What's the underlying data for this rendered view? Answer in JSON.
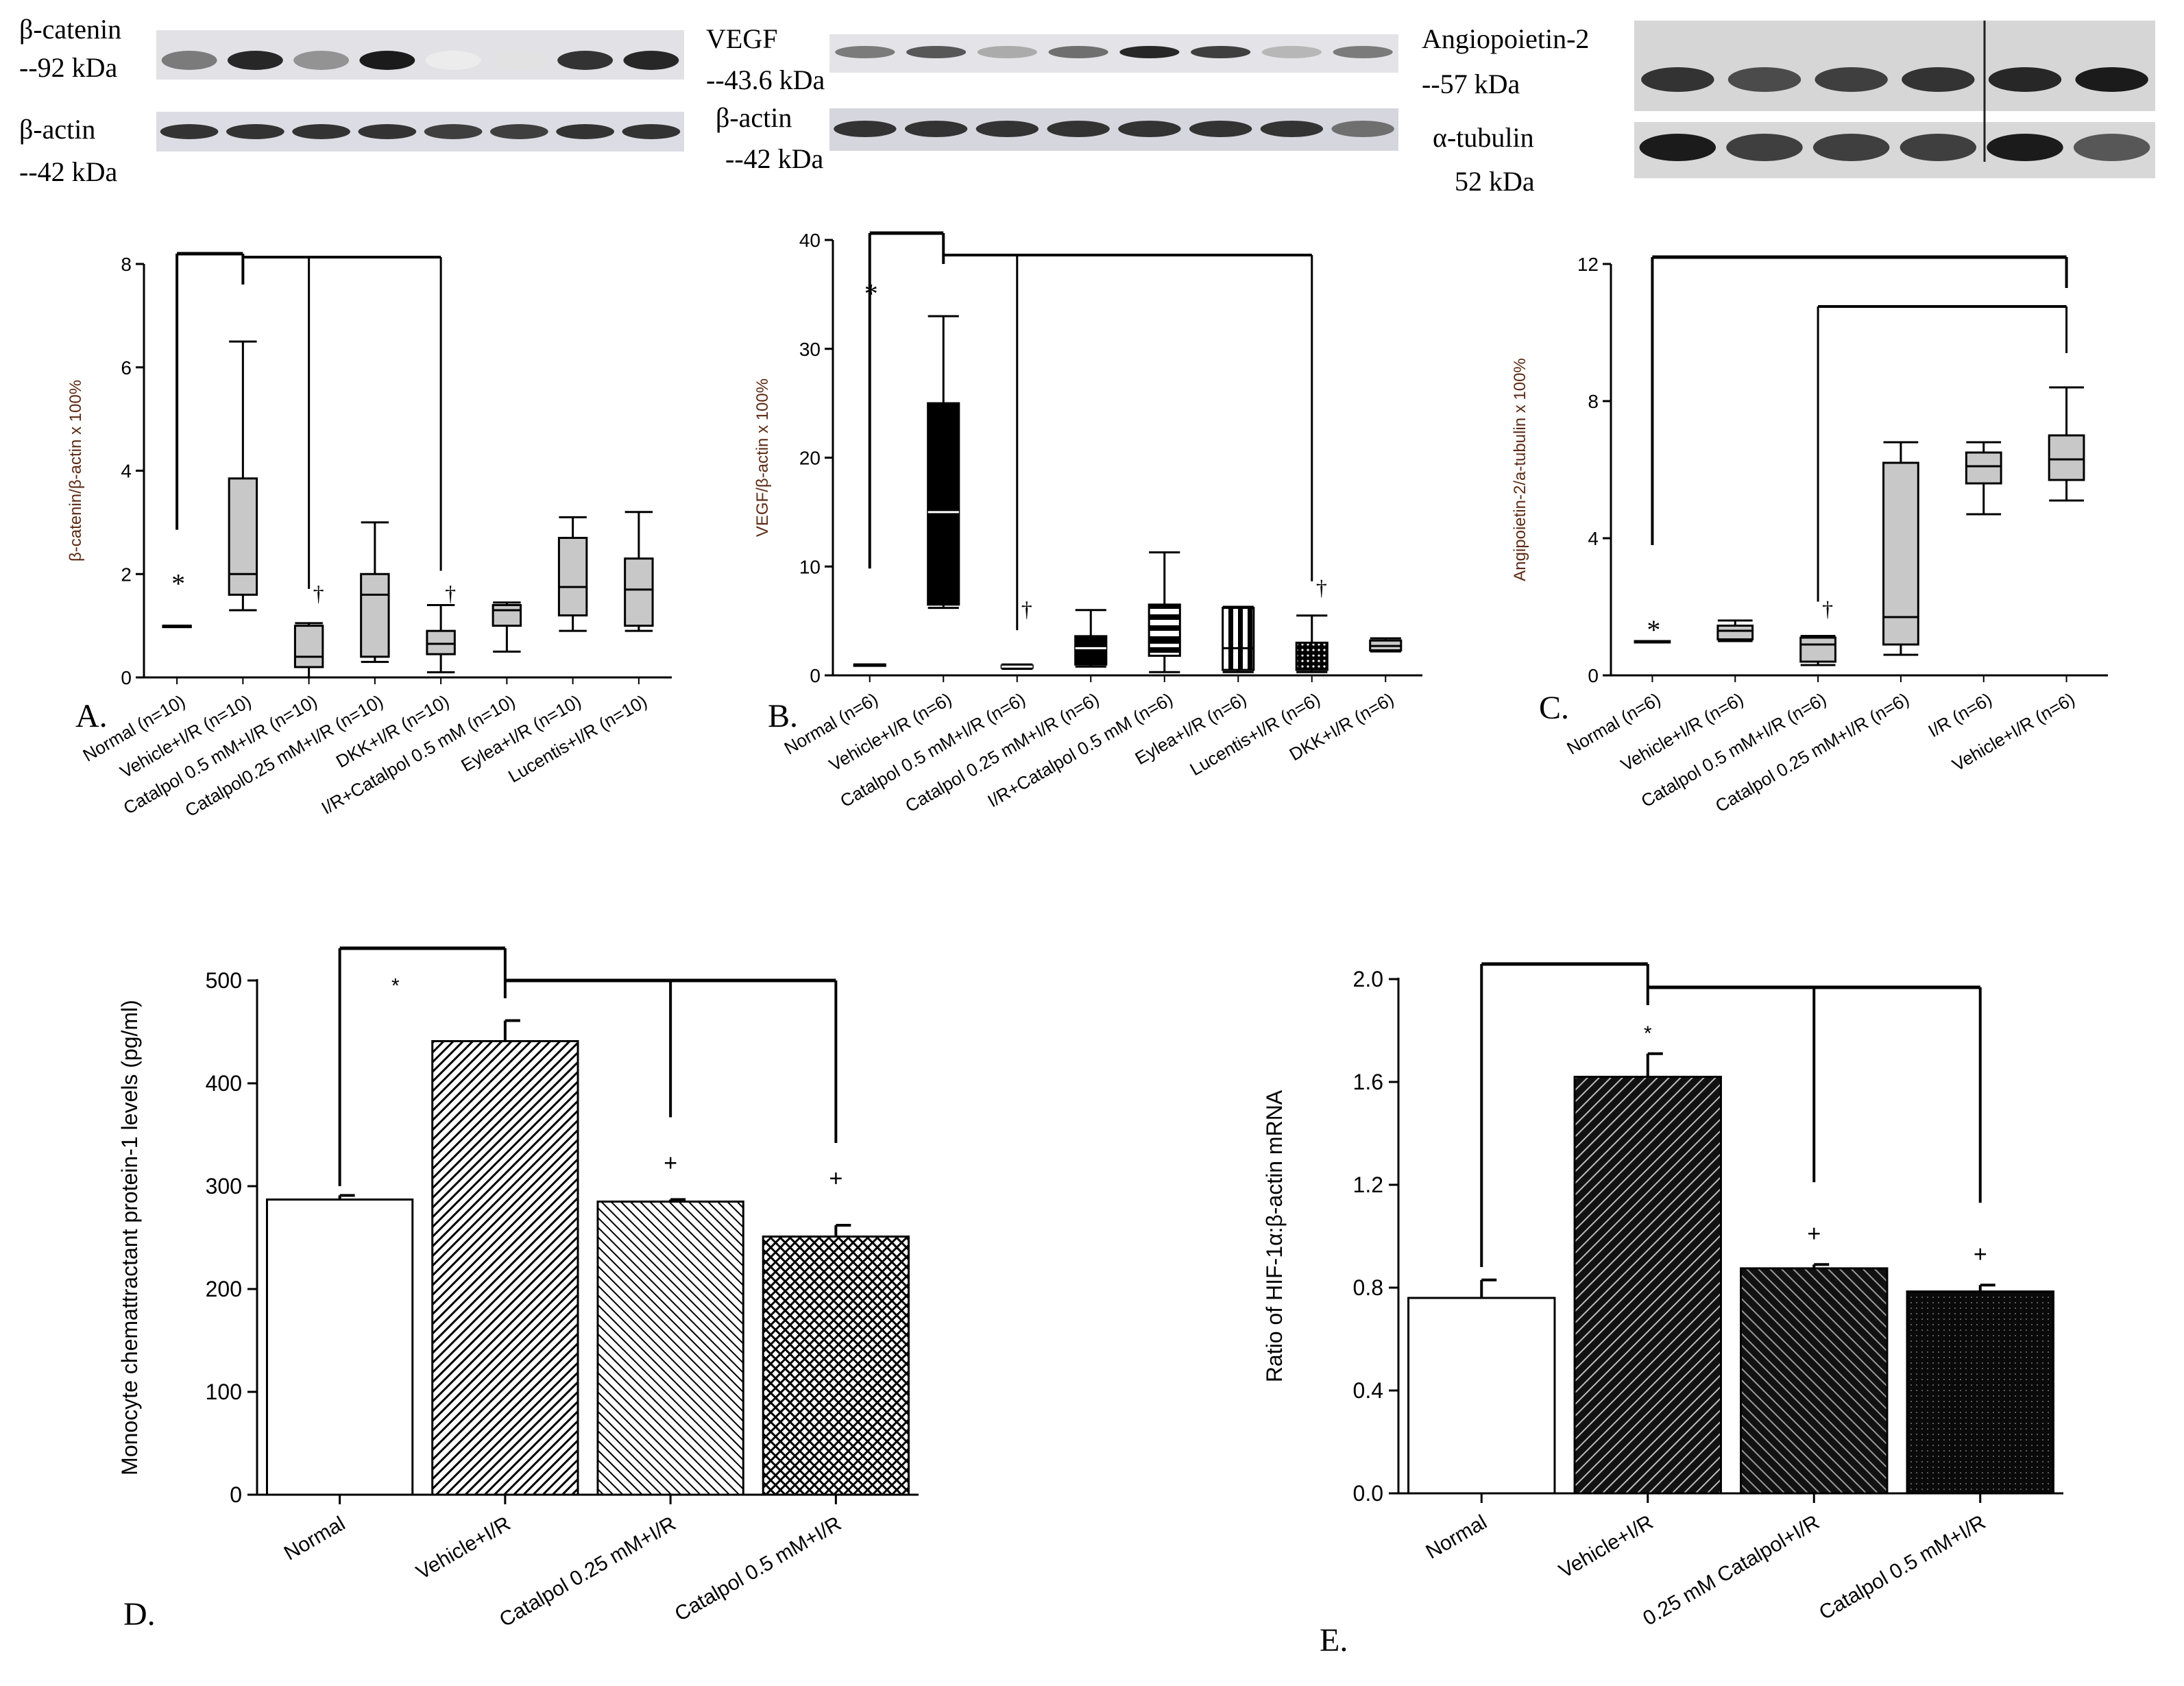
{
  "blots": {
    "A": {
      "target_label": "β-catenin",
      "target_size": "--92 kDa",
      "control_label": "β-actin",
      "control_size": "--42 kDa",
      "target_intensity": [
        0.55,
        0.9,
        0.45,
        0.95,
        0.08,
        0.12,
        0.85,
        0.9
      ],
      "control_intensity": [
        0.85,
        0.85,
        0.85,
        0.85,
        0.8,
        0.8,
        0.85,
        0.85
      ]
    },
    "B": {
      "target_label": "VEGF",
      "target_size": "--43.6 kDa",
      "control_label": "β-actin",
      "control_size": "--42 kDa",
      "target_intensity": [
        0.55,
        0.7,
        0.35,
        0.6,
        0.9,
        0.8,
        0.3,
        0.55
      ],
      "control_intensity": [
        0.85,
        0.85,
        0.85,
        0.85,
        0.85,
        0.85,
        0.85,
        0.6
      ]
    },
    "C": {
      "target_label": "Angiopoietin-2",
      "target_size": "--57 kDa",
      "control_label": "α-tubulin",
      "control_size": "52 kDa",
      "target_intensity": [
        0.85,
        0.75,
        0.8,
        0.85,
        0.9,
        0.95
      ],
      "control_intensity": [
        0.95,
        0.8,
        0.8,
        0.8,
        0.95,
        0.7
      ]
    }
  },
  "chart_data": [
    {
      "panel": "A.",
      "type": "box",
      "ylabel": "β-catenin/β-actin x 100%",
      "ylim": [
        0,
        8
      ],
      "yticks": [
        "0",
        "2",
        "4",
        "6",
        "8"
      ],
      "categories": [
        "Normal (n=10)",
        "Vehicle+I/R (n=10)",
        "Catalpol 0.5 mM+I/R  (n=10)",
        "Catalpol0.25 mM+I/R  (n=10)",
        "DKK+I/R  (n=10)",
        "I/R+Catalpol 0.5 mM (n=10)",
        "Eylea+I/R  (n=10)",
        "Lucentis+I/R  (n=10)"
      ],
      "boxes": [
        {
          "min": 1.0,
          "q1": 1.0,
          "median": 1.0,
          "q3": 1.0,
          "max": 1.0,
          "fill": "#ffffff"
        },
        {
          "min": 1.3,
          "q1": 1.6,
          "median": 2.0,
          "q3": 3.85,
          "max": 6.5,
          "fill": "#c8c8c8"
        },
        {
          "min": 0.0,
          "q1": 0.2,
          "median": 0.4,
          "q3": 1.0,
          "max": 1.05,
          "fill": "#c8c8c8"
        },
        {
          "min": 0.3,
          "q1": 0.4,
          "median": 1.6,
          "q3": 2.0,
          "max": 3.0,
          "fill": "#c8c8c8"
        },
        {
          "min": 0.1,
          "q1": 0.45,
          "median": 0.65,
          "q3": 0.9,
          "max": 1.4,
          "fill": "#c8c8c8"
        },
        {
          "min": 0.5,
          "q1": 1.0,
          "median": 1.3,
          "q3": 1.4,
          "max": 1.45,
          "fill": "#c8c8c8"
        },
        {
          "min": 0.9,
          "q1": 1.2,
          "median": 1.75,
          "q3": 2.7,
          "max": 3.1,
          "fill": "#c8c8c8"
        },
        {
          "min": 0.9,
          "q1": 1.0,
          "median": 1.7,
          "q3": 2.3,
          "max": 3.2,
          "fill": "#c8c8c8"
        }
      ],
      "annotations": {
        "star": "*",
        "dagger": "†"
      }
    },
    {
      "panel": "B.",
      "type": "box",
      "ylabel": "VEGF/β-actin x 100%",
      "ylim": [
        0,
        40
      ],
      "yticks": [
        "0",
        "10",
        "20",
        "30",
        "40"
      ],
      "categories": [
        "Normal (n=6)",
        "Vehicle+I/R (n=6)",
        "Catalpol 0.5 mM+I/R (n=6)",
        "Catalpol 0.25 mM+I/R (n=6)",
        "I/R+Catalpol 0.5 mM (n=6)",
        "Eylea+I/R (n=6)",
        "Lucentis+I/R (n=6)",
        "DKK+I/R (n=6)"
      ],
      "boxes": [
        {
          "min": 1.0,
          "q1": 1.0,
          "median": 1.0,
          "q3": 1.0,
          "max": 1.0,
          "fill": "#ffffff"
        },
        {
          "min": 6.2,
          "q1": 6.5,
          "median": 15.0,
          "q3": 25.0,
          "max": 33.0,
          "fill": "#000000"
        },
        {
          "min": 0.6,
          "q1": 0.7,
          "median": 0.8,
          "q3": 0.9,
          "max": 1.0,
          "fill": "#000000"
        },
        {
          "min": 0.8,
          "q1": 1.0,
          "median": 2.5,
          "q3": 3.6,
          "max": 6.0,
          "fill": "#000000"
        },
        {
          "min": 0.3,
          "q1": 1.8,
          "median": 3.0,
          "q3": 6.5,
          "max": 11.3,
          "fill": "hlines"
        },
        {
          "min": 0.3,
          "q1": 0.5,
          "median": 2.5,
          "q3": 6.2,
          "max": 6.3,
          "fill": "vlines"
        },
        {
          "min": 0.3,
          "q1": 0.5,
          "median": 2.0,
          "q3": 3.0,
          "max": 5.5,
          "fill": "dots"
        },
        {
          "min": 2.2,
          "q1": 2.3,
          "median": 2.7,
          "q3": 3.2,
          "max": 3.4,
          "fill": "#c8c8c8"
        }
      ],
      "annotations": {
        "star": "*",
        "dagger": "†"
      }
    },
    {
      "panel": "C.",
      "type": "box",
      "ylabel": "Angipoietin-2/a-tubulin x 100%",
      "ylim": [
        0,
        12
      ],
      "yticks": [
        "0",
        "4",
        "8",
        "12"
      ],
      "categories": [
        "Normal (n=6)",
        "Vehicle+I/R (n=6)",
        "Catalpol 0.5 mM+I/R (n=6)",
        "Catalpol 0.25 mM+I/R (n=6)",
        "I/R (n=6)",
        "Vehicle+I/R (n=6)"
      ],
      "boxes": [
        {
          "min": 1.0,
          "q1": 1.0,
          "median": 1.0,
          "q3": 1.0,
          "max": 1.0,
          "fill": "#ffffff"
        },
        {
          "min": 1.0,
          "q1": 1.05,
          "median": 1.3,
          "q3": 1.45,
          "max": 1.6,
          "fill": "#c8c8c8"
        },
        {
          "min": 0.3,
          "q1": 0.4,
          "median": 0.9,
          "q3": 1.1,
          "max": 1.15,
          "fill": "#c8c8c8"
        },
        {
          "min": 0.6,
          "q1": 0.9,
          "median": 1.7,
          "q3": 6.2,
          "max": 6.8,
          "fill": "#c8c8c8"
        },
        {
          "min": 4.7,
          "q1": 5.6,
          "median": 6.1,
          "q3": 6.5,
          "max": 6.8,
          "fill": "#c8c8c8"
        },
        {
          "min": 5.1,
          "q1": 5.7,
          "median": 6.3,
          "q3": 7.0,
          "max": 8.4,
          "fill": "#c8c8c8"
        }
      ],
      "annotations": {
        "star": "*",
        "dagger": "†"
      }
    },
    {
      "panel": "D.",
      "type": "bar",
      "ylabel": "Monocyte chemattractant protein-1 levels (pg/ml)",
      "ylim": [
        0,
        500
      ],
      "yticks": [
        "0",
        "100",
        "200",
        "300",
        "400",
        "500"
      ],
      "categories": [
        "Normal",
        "Vehicle+I/R",
        "Catalpol 0.25 mM+I/R",
        "Catalpol 0.5 mM+I/R"
      ],
      "values": [
        287,
        441,
        285,
        251
      ],
      "errors": [
        4,
        20,
        2,
        11
      ],
      "fills": [
        "white",
        "diag-fine",
        "diag-light",
        "crosshatch"
      ],
      "annotations": {
        "star": "*",
        "plus": "+"
      }
    },
    {
      "panel": "E.",
      "type": "bar",
      "ylabel": "Ratio of HIF-1α:β-actin mRNA",
      "ylim": [
        0,
        2.0
      ],
      "yticks": [
        "0.0",
        "0.4",
        "0.8",
        "1.2",
        "1.6",
        "2.0"
      ],
      "categories": [
        "Normal",
        "Vehicle+I/R",
        "0.25 mM Catalpol+I/R",
        "Catalpol 0.5 mM+I/R"
      ],
      "values": [
        0.76,
        1.62,
        0.875,
        0.785
      ],
      "errors": [
        0.07,
        0.09,
        0.015,
        0.025
      ],
      "fills": [
        "white",
        "dark-diag",
        "dark-diag2",
        "dark-dots"
      ],
      "annotations": {
        "star": "*",
        "plus": "+"
      }
    }
  ]
}
